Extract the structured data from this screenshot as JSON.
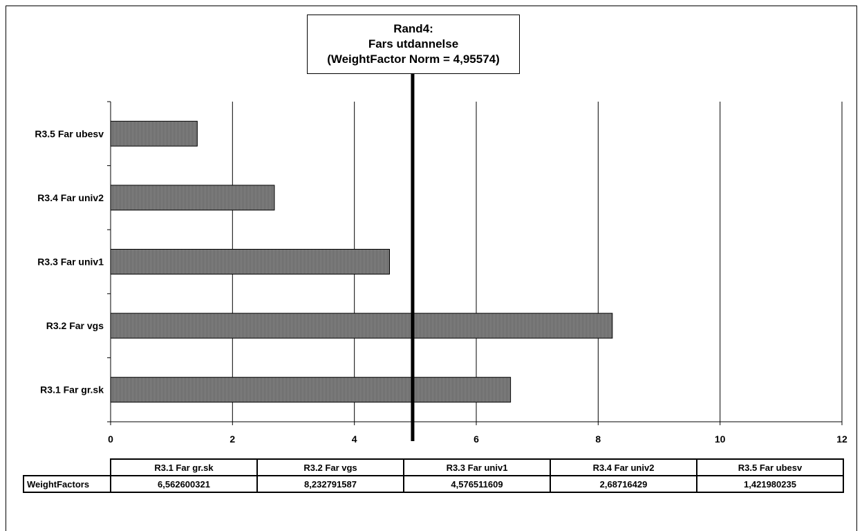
{
  "chart_data": {
    "type": "bar",
    "orientation": "horizontal",
    "title": [
      "Rand4:",
      "Fars utdannelse",
      "(WeightFactor Norm = 4,95574)"
    ],
    "categories": [
      "R3.1 Far gr.sk",
      "R3.2 Far vgs",
      "R3.3 Far univ1",
      "R3.4 Far univ2",
      "R3.5 Far ubesv"
    ],
    "values": [
      6.562600321,
      8.232791587,
      4.576511609,
      2.68716429,
      1.421980235
    ],
    "reference_line": {
      "value": 4.95574
    },
    "xlim": [
      0,
      12
    ],
    "xticks": [
      0,
      2,
      4,
      6,
      8,
      10,
      12
    ],
    "grid": true,
    "bar_color": "#8c8c8c",
    "reference_color": "#000000"
  },
  "table": {
    "row_label": "WeightFactors",
    "headers": [
      "R3.1 Far gr.sk",
      "R3.2 Far vgs",
      "R3.3 Far univ1",
      "R3.4 Far univ2",
      "R3.5 Far ubesv"
    ],
    "values": [
      "6,562600321",
      "8,232791587",
      "4,576511609",
      "2,68716429",
      "1,421980235"
    ]
  }
}
